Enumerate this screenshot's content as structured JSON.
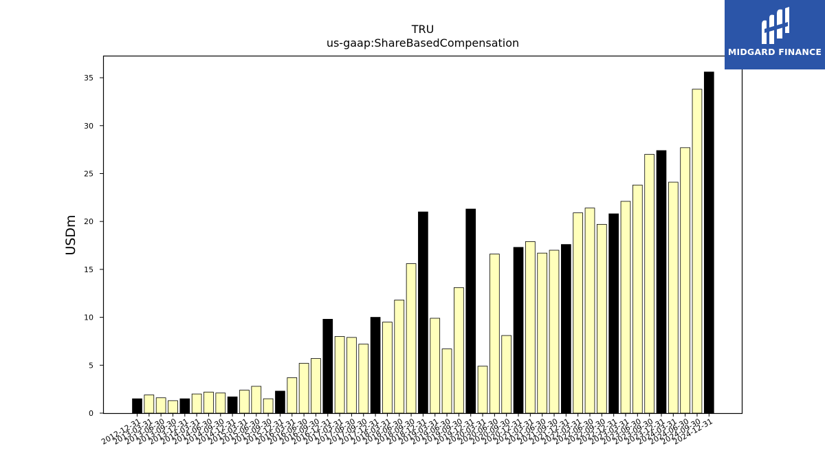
{
  "chart_data": {
    "type": "bar",
    "title": "TRU",
    "subtitle": "us-gaap:ShareBasedCompensation",
    "xlabel": "",
    "ylabel": "USDm",
    "ylim": [
      0,
      37.3
    ],
    "yticks": [
      0,
      5,
      10,
      15,
      20,
      25,
      30,
      35
    ],
    "grid": false,
    "categories": [
      "2012-12-31",
      "2013-03-31",
      "2013-06-30",
      "2013-09-30",
      "2013-12-31",
      "2014-03-31",
      "2014-06-30",
      "2014-09-30",
      "2014-12-31",
      "2015-03-31",
      "2015-06-30",
      "2015-09-30",
      "2015-12-31",
      "2016-03-31",
      "2016-06-30",
      "2016-09-30",
      "2016-12-31",
      "2017-03-31",
      "2017-06-30",
      "2017-09-30",
      "2017-12-31",
      "2018-03-31",
      "2018-06-30",
      "2018-09-30",
      "2018-12-31",
      "2019-03-31",
      "2019-06-30",
      "2019-09-30",
      "2019-12-31",
      "2020-03-31",
      "2020-06-30",
      "2020-09-30",
      "2020-12-31",
      "2021-03-31",
      "2021-06-30",
      "2021-09-30",
      "2021-12-31",
      "2022-03-31",
      "2022-06-30",
      "2022-09-30",
      "2022-12-31",
      "2023-03-31",
      "2023-06-30",
      "2023-09-30",
      "2023-12-31",
      "2024-03-31",
      "2024-06-30",
      "2024-09-30",
      "2024-12-31"
    ],
    "values": [
      1.5,
      1.9,
      1.6,
      1.3,
      1.5,
      2.0,
      2.2,
      2.1,
      1.7,
      2.4,
      2.8,
      1.5,
      2.3,
      3.7,
      5.2,
      5.7,
      9.8,
      8.0,
      7.9,
      7.2,
      10.0,
      9.5,
      11.8,
      15.6,
      21.0,
      9.9,
      6.7,
      13.1,
      21.3,
      4.9,
      16.6,
      8.1,
      17.3,
      17.9,
      16.7,
      17.0,
      17.6,
      20.9,
      21.4,
      19.7,
      20.8,
      22.1,
      23.8,
      27.0,
      27.4,
      24.1,
      27.7,
      33.8,
      35.6
    ],
    "highlight_color": "#000000",
    "normal_color": "#ffffbb",
    "edge_color": "#000000",
    "highlight_rule": "Q4 (year-end) bars drawn in black"
  },
  "logo": {
    "text": "MIDGARD FINANCE",
    "background": "#2b55a8"
  }
}
